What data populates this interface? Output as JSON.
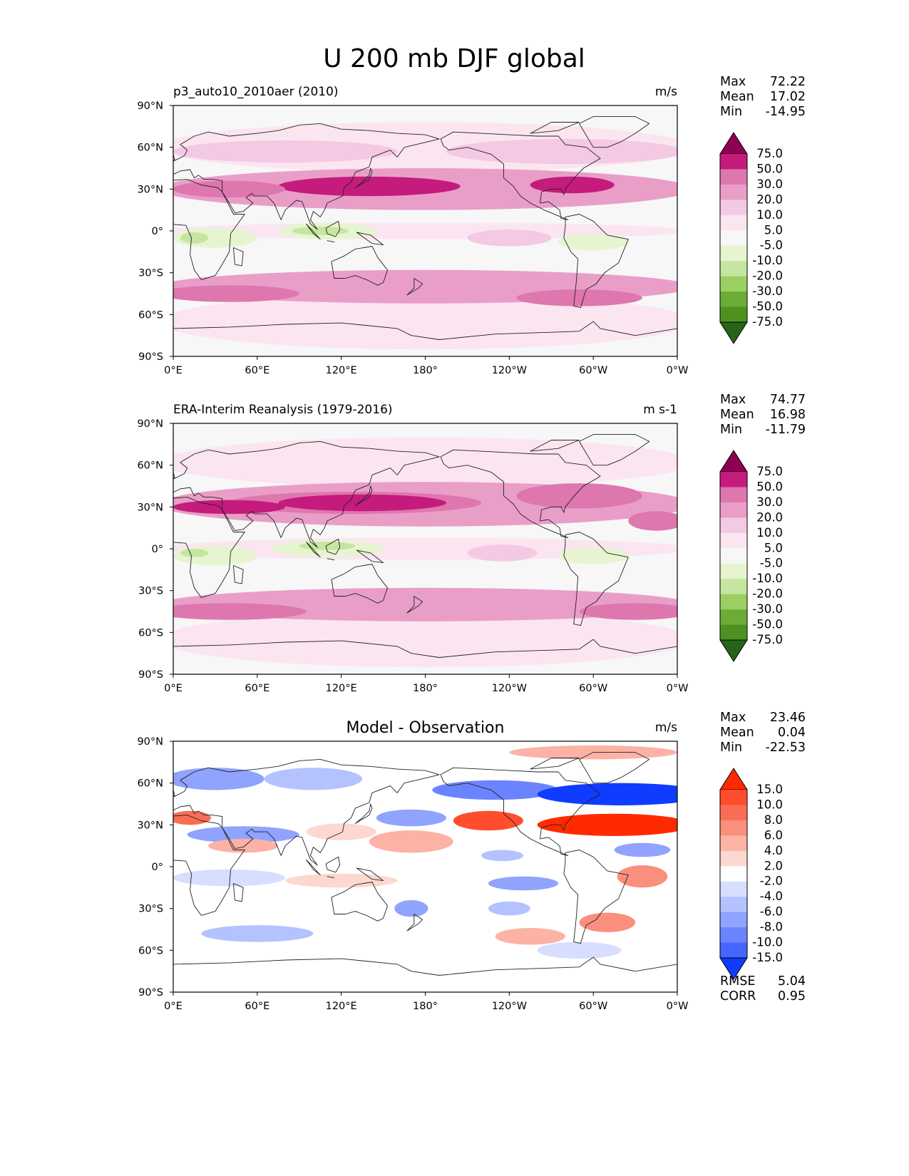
{
  "title": "U 200 mb DJF global",
  "colors": {
    "coastline": "#222222",
    "land_fill": "none",
    "seq_no_data": "#f7f7f7"
  },
  "chart_data": [
    {
      "type": "heatmap",
      "title": "p3_auto10_2010aer (2010)",
      "units": "m/s",
      "stats": [
        {
          "label": "Max",
          "value": "72.22"
        },
        {
          "label": "Mean",
          "value": "17.02"
        },
        {
          "label": "Min",
          "value": "-14.95"
        }
      ],
      "x_ticks": [
        "0°E",
        "60°E",
        "120°E",
        "180°",
        "120°W",
        "60°W",
        "0°W"
      ],
      "y_ticks": [
        "90°N",
        "60°N",
        "30°N",
        "0°",
        "30°S",
        "60°S",
        "90°S"
      ],
      "xlim": [
        0,
        360
      ],
      "ylim": [
        -90,
        90
      ],
      "colorbar": {
        "ticks": [
          "75.0",
          "50.0",
          "30.0",
          "20.0",
          "10.0",
          "5.0",
          "-5.0",
          "-10.0",
          "-20.0",
          "-30.0",
          "-50.0",
          "-75.0"
        ],
        "colors": [
          "#8e0152",
          "#c51b7d",
          "#de77ae",
          "#e99ec8",
          "#f4c9e3",
          "#fbe5f1",
          "#f7f7f7",
          "#e6f5d0",
          "#c5e5a0",
          "#9ccf63",
          "#6bac35",
          "#4d9221",
          "#276419"
        ]
      },
      "features": [
        {
          "lon": 180,
          "lat": 0,
          "rlon": 190,
          "rlat": 6,
          "level": "5.0"
        },
        {
          "lon": 180,
          "lat": 60,
          "rlon": 190,
          "rlat": 18,
          "level": "5.0"
        },
        {
          "lon": 180,
          "lat": -65,
          "rlon": 190,
          "rlat": 20,
          "level": "5.0"
        },
        {
          "lon": 180,
          "lat": 30,
          "rlon": 190,
          "rlat": 15,
          "level": "20.0"
        },
        {
          "lon": 180,
          "lat": -40,
          "rlon": 190,
          "rlat": 12,
          "level": "20.0"
        },
        {
          "lon": 80,
          "lat": 57,
          "rlon": 80,
          "rlat": 8,
          "level": "10.0"
        },
        {
          "lon": 280,
          "lat": 57,
          "rlon": 85,
          "rlat": 9,
          "level": "10.0"
        },
        {
          "lon": 140,
          "lat": 32,
          "rlon": 65,
          "rlat": 7,
          "level": "50.0"
        },
        {
          "lon": 40,
          "lat": 30,
          "rlon": 40,
          "rlat": 6,
          "level": "30.0"
        },
        {
          "lon": 285,
          "lat": 33,
          "rlon": 30,
          "rlat": 6,
          "level": "50.0"
        },
        {
          "lon": 40,
          "lat": -45,
          "rlon": 50,
          "rlat": 6,
          "level": "30.0"
        },
        {
          "lon": 290,
          "lat": -48,
          "rlon": 45,
          "rlat": 6,
          "level": "30.0"
        },
        {
          "lon": 240,
          "lat": -5,
          "rlon": 30,
          "rlat": 6,
          "level": "10.0"
        },
        {
          "lon": 30,
          "lat": -5,
          "rlon": 30,
          "rlat": 7,
          "level": "-5.0"
        },
        {
          "lon": 110,
          "lat": 0,
          "rlon": 35,
          "rlat": 6,
          "level": "-5.0"
        },
        {
          "lon": 300,
          "lat": -8,
          "rlon": 25,
          "rlat": 6,
          "level": "-5.0"
        },
        {
          "lon": 15,
          "lat": -5,
          "rlon": 10,
          "rlat": 4,
          "level": "-10.0"
        },
        {
          "lon": 105,
          "lat": 0,
          "rlon": 20,
          "rlat": 3,
          "level": "-10.0"
        }
      ]
    },
    {
      "type": "heatmap",
      "title": "ERA-Interim Reanalysis (1979-2016)",
      "units": "m s-1",
      "stats": [
        {
          "label": "Max",
          "value": "74.77"
        },
        {
          "label": "Mean",
          "value": "16.98"
        },
        {
          "label": "Min",
          "value": "-11.79"
        }
      ],
      "x_ticks": [
        "0°E",
        "60°E",
        "120°E",
        "180°",
        "120°W",
        "60°W",
        "0°W"
      ],
      "y_ticks": [
        "90°N",
        "60°N",
        "30°N",
        "0°",
        "30°S",
        "60°S",
        "90°S"
      ],
      "xlim": [
        0,
        360
      ],
      "ylim": [
        -90,
        90
      ],
      "colorbar": {
        "ticks": [
          "75.0",
          "50.0",
          "30.0",
          "20.0",
          "10.0",
          "5.0",
          "-5.0",
          "-10.0",
          "-20.0",
          "-30.0",
          "-50.0",
          "-75.0"
        ],
        "colors": [
          "#8e0152",
          "#c51b7d",
          "#de77ae",
          "#e99ec8",
          "#f4c9e3",
          "#fbe5f1",
          "#f7f7f7",
          "#e6f5d0",
          "#c5e5a0",
          "#9ccf63",
          "#6bac35",
          "#4d9221",
          "#276419"
        ]
      },
      "features": [
        {
          "lon": 180,
          "lat": 0,
          "rlon": 190,
          "rlat": 8,
          "level": "5.0"
        },
        {
          "lon": 180,
          "lat": 62,
          "rlon": 190,
          "rlat": 18,
          "level": "5.0"
        },
        {
          "lon": 180,
          "lat": -65,
          "rlon": 190,
          "rlat": 20,
          "level": "5.0"
        },
        {
          "lon": 180,
          "lat": 32,
          "rlon": 190,
          "rlat": 16,
          "level": "20.0"
        },
        {
          "lon": 180,
          "lat": -40,
          "rlon": 190,
          "rlat": 12,
          "level": "20.0"
        },
        {
          "lon": 130,
          "lat": 33,
          "rlon": 90,
          "rlat": 8,
          "level": "30.0"
        },
        {
          "lon": 135,
          "lat": 33,
          "rlon": 60,
          "rlat": 6,
          "level": "50.0"
        },
        {
          "lon": 40,
          "lat": 30,
          "rlon": 40,
          "rlat": 5,
          "level": "50.0"
        },
        {
          "lon": 290,
          "lat": 38,
          "rlon": 45,
          "rlat": 9,
          "level": "30.0"
        },
        {
          "lon": 345,
          "lat": 20,
          "rlon": 20,
          "rlat": 7,
          "level": "30.0"
        },
        {
          "lon": 40,
          "lat": -45,
          "rlon": 55,
          "rlat": 6,
          "level": "30.0"
        },
        {
          "lon": 330,
          "lat": -45,
          "rlon": 40,
          "rlat": 6,
          "level": "30.0"
        },
        {
          "lon": 235,
          "lat": -3,
          "rlon": 25,
          "rlat": 6,
          "level": "10.0"
        },
        {
          "lon": 30,
          "lat": -5,
          "rlon": 30,
          "rlat": 7,
          "level": "-5.0"
        },
        {
          "lon": 110,
          "lat": 0,
          "rlon": 40,
          "rlat": 6,
          "level": "-5.0"
        },
        {
          "lon": 300,
          "lat": -5,
          "rlon": 25,
          "rlat": 6,
          "level": "-5.0"
        },
        {
          "lon": 15,
          "lat": -3,
          "rlon": 10,
          "rlat": 3,
          "level": "-10.0"
        },
        {
          "lon": 110,
          "lat": 2,
          "rlon": 20,
          "rlat": 3,
          "level": "-10.0"
        }
      ]
    },
    {
      "type": "heatmap",
      "title": "Model - Observation",
      "units": "m/s",
      "stats": [
        {
          "label": "Max",
          "value": "23.46"
        },
        {
          "label": "Mean",
          "value": "0.04"
        },
        {
          "label": "Min",
          "value": "-22.53"
        }
      ],
      "extra_stats": [
        {
          "label": "RMSE",
          "value": "5.04"
        },
        {
          "label": "CORR",
          "value": "0.95"
        }
      ],
      "x_ticks": [
        "0°E",
        "60°E",
        "120°E",
        "180°",
        "120°W",
        "60°W",
        "0°W"
      ],
      "y_ticks": [
        "90°N",
        "60°N",
        "30°N",
        "0°",
        "30°S",
        "60°S",
        "90°S"
      ],
      "xlim": [
        0,
        360
      ],
      "ylim": [
        -90,
        90
      ],
      "colorbar": {
        "ticks": [
          "15.0",
          "10.0",
          "8.0",
          "6.0",
          "4.0",
          "2.0",
          "-2.0",
          "-4.0",
          "-6.0",
          "-8.0",
          "-10.0",
          "-15.0"
        ],
        "colors": [
          "#ff2a00",
          "#ff4d2e",
          "#f86e55",
          "#f98f7c",
          "#fcb2a5",
          "#fdd8d0",
          "#ffffff",
          "#d7deff",
          "#b4c2ff",
          "#8fa3ff",
          "#6a84ff",
          "#4765ff",
          "#0f3cff"
        ]
      },
      "features": [
        {
          "lon": 30,
          "lat": 63,
          "rlon": 35,
          "rlat": 8,
          "level": "-6.0"
        },
        {
          "lon": 100,
          "lat": 63,
          "rlon": 35,
          "rlat": 8,
          "level": "-4.0"
        },
        {
          "lon": 230,
          "lat": 55,
          "rlon": 45,
          "rlat": 7,
          "level": "-8.0"
        },
        {
          "lon": 320,
          "lat": 52,
          "rlon": 60,
          "rlat": 8,
          "level": "-15.0"
        },
        {
          "lon": 315,
          "lat": 30,
          "rlon": 55,
          "rlat": 8,
          "level": "15.0"
        },
        {
          "lon": 225,
          "lat": 33,
          "rlon": 25,
          "rlat": 7,
          "level": "10.0"
        },
        {
          "lon": 12,
          "lat": 35,
          "rlon": 15,
          "rlat": 5,
          "level": "8.0"
        },
        {
          "lon": 50,
          "lat": 23,
          "rlon": 40,
          "rlat": 6,
          "level": "-6.0"
        },
        {
          "lon": 50,
          "lat": 15,
          "rlon": 25,
          "rlat": 5,
          "level": "4.0"
        },
        {
          "lon": 170,
          "lat": 18,
          "rlon": 30,
          "rlat": 8,
          "level": "4.0"
        },
        {
          "lon": 120,
          "lat": 25,
          "rlon": 25,
          "rlat": 6,
          "level": "2.0"
        },
        {
          "lon": 170,
          "lat": 35,
          "rlon": 25,
          "rlat": 6,
          "level": "-6.0"
        },
        {
          "lon": 235,
          "lat": 8,
          "rlon": 15,
          "rlat": 4,
          "level": "-4.0"
        },
        {
          "lon": 250,
          "lat": -12,
          "rlon": 25,
          "rlat": 5,
          "level": "-6.0"
        },
        {
          "lon": 335,
          "lat": -7,
          "rlon": 18,
          "rlat": 8,
          "level": "6.0"
        },
        {
          "lon": 335,
          "lat": 12,
          "rlon": 20,
          "rlat": 5,
          "level": "-6.0"
        },
        {
          "lon": 40,
          "lat": -8,
          "rlon": 40,
          "rlat": 6,
          "level": "-2.0"
        },
        {
          "lon": 120,
          "lat": -10,
          "rlon": 40,
          "rlat": 5,
          "level": "2.0"
        },
        {
          "lon": 170,
          "lat": -30,
          "rlon": 12,
          "rlat": 6,
          "level": "-6.0"
        },
        {
          "lon": 310,
          "lat": -40,
          "rlon": 20,
          "rlat": 7,
          "level": "6.0"
        },
        {
          "lon": 255,
          "lat": -50,
          "rlon": 25,
          "rlat": 6,
          "level": "4.0"
        },
        {
          "lon": 60,
          "lat": -48,
          "rlon": 40,
          "rlat": 6,
          "level": "-4.0"
        },
        {
          "lon": 240,
          "lat": -30,
          "rlon": 15,
          "rlat": 5,
          "level": "-4.0"
        },
        {
          "lon": 290,
          "lat": -60,
          "rlon": 30,
          "rlat": 6,
          "level": "-2.0"
        },
        {
          "lon": 300,
          "lat": 82,
          "rlon": 60,
          "rlat": 5,
          "level": "4.0"
        }
      ]
    }
  ]
}
